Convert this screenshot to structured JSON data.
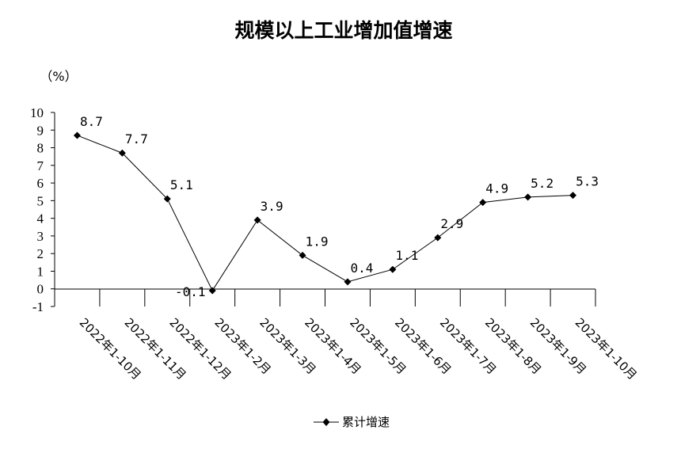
{
  "chart_data": {
    "type": "line",
    "title": "规模以上工业增加值增速",
    "ylabel": "（%）",
    "xlabel": "",
    "ylim": [
      -1,
      10
    ],
    "yticks": [
      -1,
      0,
      1,
      2,
      3,
      4,
      5,
      6,
      7,
      8,
      9,
      10
    ],
    "categories": [
      "2022年1-10月",
      "2022年1-11月",
      "2022年1-12月",
      "2023年1-2月",
      "2023年1-3月",
      "2023年1-4月",
      "2023年1-5月",
      "2023年1-6月",
      "2023年1-7月",
      "2023年1-8月",
      "2023年1-9月",
      "2023年1-10月"
    ],
    "series": [
      {
        "name": "累计增速",
        "values": [
          8.7,
          7.7,
          5.1,
          -0.1,
          3.9,
          1.9,
          0.4,
          1.1,
          2.9,
          4.9,
          5.2,
          5.3
        ],
        "labels": [
          "8.7",
          "7.7",
          "5.1",
          "-0.1",
          "3.9",
          "1.9",
          "0.4",
          "1.1",
          "2.9",
          "4.9",
          "5.2",
          "5.3"
        ],
        "color": "#000000",
        "marker": "diamond"
      }
    ],
    "legend_position": "bottom-center",
    "grid": false
  }
}
